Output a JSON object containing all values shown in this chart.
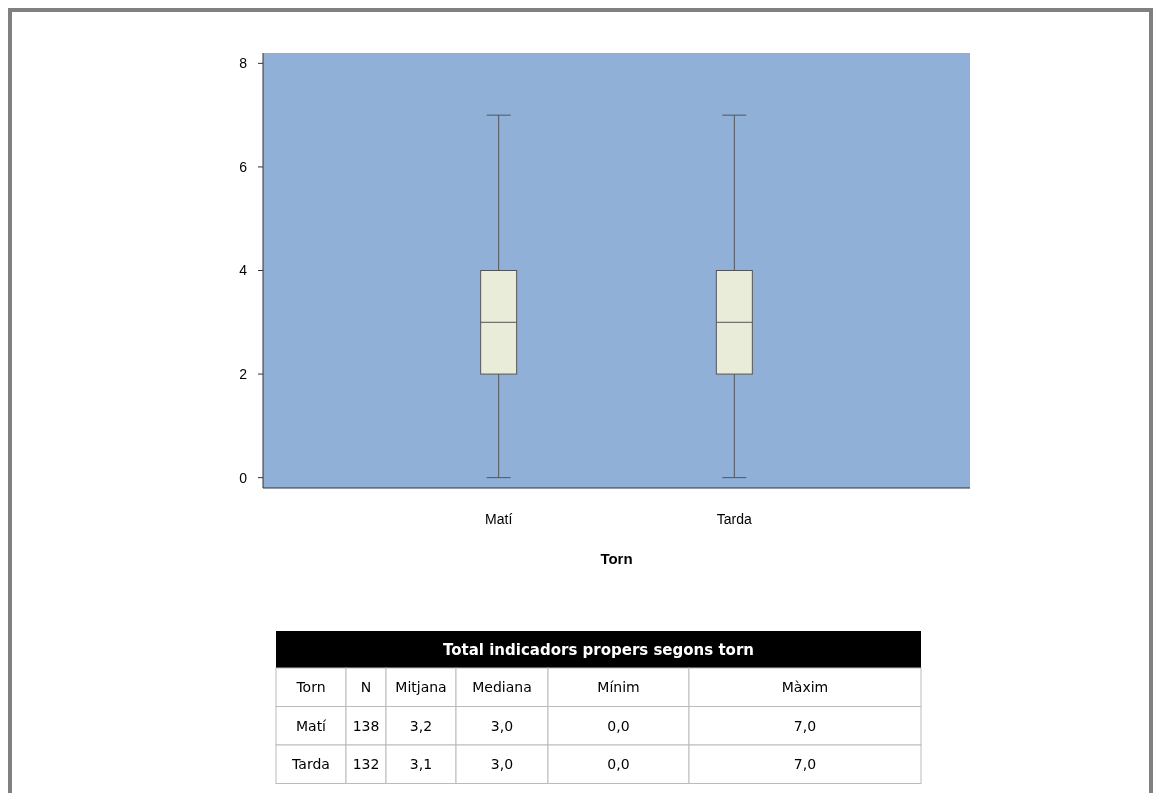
{
  "chart_data": [
    {
      "type": "box",
      "categories": [
        "Matí",
        "Tarda"
      ],
      "xlabel": "Torn",
      "ylim": [
        -0.2,
        8.2
      ],
      "yticks": [
        0,
        2,
        4,
        6,
        8
      ],
      "color": "#e8ecd8",
      "boxes": [
        {
          "low": 0,
          "q1": 2,
          "median": 3,
          "q3": 4,
          "high": 7
        },
        {
          "low": 0,
          "q1": 2,
          "median": 3,
          "q3": 4,
          "high": 7
        }
      ]
    },
    {
      "type": "other",
      "title": "Total indicadors propers segons torn",
      "categories": [
        "Torn",
        "N",
        "Mitjana",
        "Mediana",
        "Mínim",
        "Màxim"
      ],
      "cell_labels": [
        [
          "Matí",
          "138",
          "3,2",
          "3,0",
          "0,0",
          "7,0"
        ],
        [
          "Tarda",
          "132",
          "3,1",
          "3,0",
          "0,0",
          "7,0"
        ]
      ]
    }
  ]
}
